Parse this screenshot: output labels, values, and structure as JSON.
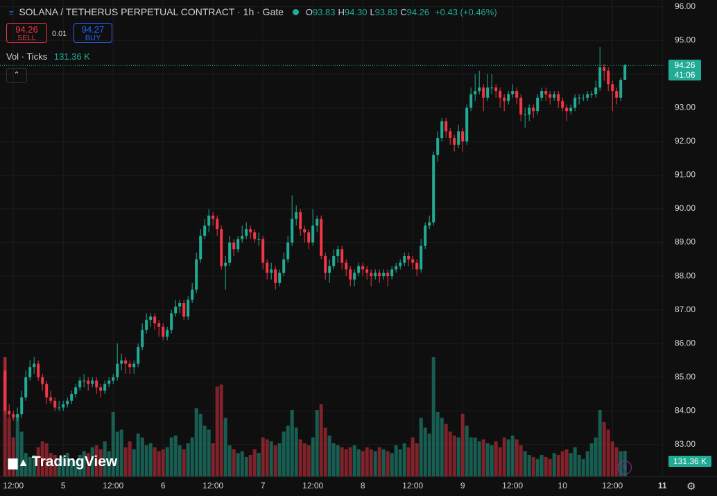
{
  "header": {
    "title": "SOLANA / TETHERUS PERPETUAL CONTRACT · 1h · Gate",
    "ohlc": [
      {
        "label": "O",
        "value": "93.83"
      },
      {
        "label": "H",
        "value": "94.30"
      },
      {
        "label": "L",
        "value": "93.83"
      },
      {
        "label": "C",
        "value": "94.26"
      }
    ],
    "change": "+0.43 (+0.46%)"
  },
  "trade": {
    "sell_price": "94.26",
    "sell_label": "SELL",
    "spread": "0.01",
    "buy_price": "94.27",
    "buy_label": "BUY"
  },
  "volume_legend": {
    "label": "Vol · Ticks",
    "value": "131.36 K"
  },
  "branding": "TradingView",
  "price_tag": {
    "price": "94.26",
    "countdown": "41:06"
  },
  "volume_tag": "131.36 K",
  "chart_data": {
    "type": "candlestick",
    "up_color": "#22ab94",
    "down_color": "#f23645",
    "grid": true,
    "ylim": [
      82.05,
      96.2
    ],
    "yticks": [
      {
        "value": 83,
        "label": "83.00"
      },
      {
        "value": 84,
        "label": "84.00"
      },
      {
        "value": 85,
        "label": "85.00"
      },
      {
        "value": 86,
        "label": "86.00"
      },
      {
        "value": 87,
        "label": "87.00"
      },
      {
        "value": 88,
        "label": "88.00"
      },
      {
        "value": 89,
        "label": "89.00"
      },
      {
        "value": 90,
        "label": "90.00"
      },
      {
        "value": 91,
        "label": "91.00"
      },
      {
        "value": 92,
        "label": "92.00"
      },
      {
        "value": 93,
        "label": "93.00"
      },
      {
        "value": 94,
        "label": "94.00"
      },
      {
        "value": 95,
        "label": "95.00"
      },
      {
        "value": 96,
        "label": "96.00"
      }
    ],
    "xlim": [
      -1.2,
      158.8
    ],
    "xticks": [
      {
        "value": 2,
        "label": "12:00"
      },
      {
        "value": 14,
        "label": "5"
      },
      {
        "value": 26,
        "label": "12:00"
      },
      {
        "value": 38,
        "label": "6"
      },
      {
        "value": 50,
        "label": "12:00"
      },
      {
        "value": 62,
        "label": "7"
      },
      {
        "value": 74,
        "label": "12:00"
      },
      {
        "value": 86,
        "label": "8"
      },
      {
        "value": 98,
        "label": "12:00"
      },
      {
        "value": 110,
        "label": "9"
      },
      {
        "value": 122,
        "label": "12:00"
      },
      {
        "value": 134,
        "label": "10"
      },
      {
        "value": 146,
        "label": "12:00"
      },
      {
        "value": 158,
        "label": "11"
      }
    ],
    "ohlc": [
      [
        85.2,
        85.6,
        83.9,
        84.0
      ],
      [
        84.0,
        84.2,
        83.8,
        83.9
      ],
      [
        83.9,
        84.0,
        83.7,
        83.8
      ],
      [
        83.8,
        84.1,
        83.7,
        83.9
      ],
      [
        83.9,
        84.6,
        83.8,
        84.4
      ],
      [
        84.4,
        85.2,
        84.3,
        85.0
      ],
      [
        85.0,
        85.5,
        84.9,
        85.3
      ],
      [
        85.3,
        85.6,
        85.1,
        85.4
      ],
      [
        85.4,
        85.5,
        84.9,
        85.0
      ],
      [
        85.0,
        85.1,
        84.6,
        84.8
      ],
      [
        84.8,
        84.9,
        84.2,
        84.4
      ],
      [
        84.4,
        84.6,
        84.2,
        84.3
      ],
      [
        84.3,
        84.4,
        84.0,
        84.1
      ],
      [
        84.1,
        84.3,
        84.0,
        84.1
      ],
      [
        84.1,
        84.3,
        84.0,
        84.2
      ],
      [
        84.2,
        84.4,
        84.1,
        84.3
      ],
      [
        84.3,
        84.6,
        84.2,
        84.5
      ],
      [
        84.5,
        84.8,
        84.4,
        84.7
      ],
      [
        84.7,
        85.0,
        84.6,
        84.9
      ],
      [
        84.9,
        85.1,
        84.7,
        84.9
      ],
      [
        84.9,
        85.0,
        84.6,
        84.8
      ],
      [
        84.8,
        85.0,
        84.7,
        84.9
      ],
      [
        84.9,
        85.0,
        84.5,
        84.7
      ],
      [
        84.7,
        84.8,
        84.4,
        84.6
      ],
      [
        84.6,
        84.9,
        84.5,
        84.8
      ],
      [
        84.8,
        85.0,
        84.7,
        84.9
      ],
      [
        84.9,
        85.1,
        84.8,
        85.0
      ],
      [
        85.0,
        86.0,
        84.9,
        85.4
      ],
      [
        85.4,
        85.7,
        85.2,
        85.5
      ],
      [
        85.5,
        85.6,
        85.1,
        85.4
      ],
      [
        85.4,
        85.5,
        85.1,
        85.3
      ],
      [
        85.3,
        85.5,
        85.1,
        85.4
      ],
      [
        85.4,
        86.0,
        85.3,
        85.9
      ],
      [
        85.9,
        86.6,
        85.8,
        86.4
      ],
      [
        86.4,
        86.9,
        86.3,
        86.7
      ],
      [
        86.7,
        86.9,
        86.5,
        86.8
      ],
      [
        86.8,
        86.9,
        86.4,
        86.6
      ],
      [
        86.6,
        86.7,
        86.2,
        86.5
      ],
      [
        86.5,
        86.6,
        86.1,
        86.2
      ],
      [
        86.2,
        86.5,
        86.1,
        86.4
      ],
      [
        86.4,
        87.0,
        86.3,
        86.9
      ],
      [
        86.9,
        87.3,
        86.8,
        87.1
      ],
      [
        87.1,
        87.3,
        86.9,
        87.2
      ],
      [
        87.2,
        87.3,
        86.7,
        86.8
      ],
      [
        86.8,
        87.4,
        86.7,
        87.3
      ],
      [
        87.3,
        87.8,
        87.2,
        87.6
      ],
      [
        87.6,
        88.7,
        87.5,
        88.5
      ],
      [
        88.5,
        89.4,
        88.4,
        89.2
      ],
      [
        89.2,
        89.7,
        89.1,
        89.5
      ],
      [
        89.5,
        90.0,
        89.3,
        89.8
      ],
      [
        89.8,
        89.9,
        89.5,
        89.7
      ],
      [
        89.7,
        89.8,
        89.2,
        89.4
      ],
      [
        89.4,
        89.5,
        88.2,
        88.3
      ],
      [
        88.3,
        88.6,
        87.6,
        88.4
      ],
      [
        88.4,
        89.2,
        88.3,
        89.0
      ],
      [
        89.0,
        89.1,
        88.6,
        88.8
      ],
      [
        88.8,
        89.2,
        88.7,
        89.1
      ],
      [
        89.1,
        89.5,
        89.0,
        89.2
      ],
      [
        89.2,
        89.6,
        89.1,
        89.4
      ],
      [
        89.4,
        89.5,
        89.1,
        89.3
      ],
      [
        89.3,
        89.4,
        89.0,
        89.1
      ],
      [
        89.1,
        89.3,
        88.9,
        89.1
      ],
      [
        89.1,
        89.2,
        88.2,
        88.4
      ],
      [
        88.4,
        88.5,
        87.9,
        88.1
      ],
      [
        88.1,
        88.4,
        87.9,
        88.2
      ],
      [
        88.2,
        88.3,
        87.6,
        87.8
      ],
      [
        87.8,
        88.2,
        87.7,
        88.1
      ],
      [
        88.1,
        88.7,
        88.0,
        88.5
      ],
      [
        88.5,
        89.2,
        88.4,
        89.0
      ],
      [
        89.0,
        90.4,
        88.9,
        89.7
      ],
      [
        89.7,
        90.1,
        89.5,
        89.9
      ],
      [
        89.9,
        90.0,
        89.2,
        89.4
      ],
      [
        89.4,
        89.5,
        89.0,
        89.3
      ],
      [
        89.3,
        89.4,
        88.8,
        89.0
      ],
      [
        89.0,
        90.0,
        88.9,
        89.5
      ],
      [
        89.5,
        89.8,
        89.3,
        89.7
      ],
      [
        89.7,
        89.8,
        88.5,
        88.6
      ],
      [
        88.6,
        88.7,
        87.9,
        88.1
      ],
      [
        88.1,
        88.5,
        87.8,
        88.3
      ],
      [
        88.3,
        88.8,
        88.2,
        88.6
      ],
      [
        88.6,
        88.9,
        88.4,
        88.8
      ],
      [
        88.8,
        88.9,
        88.2,
        88.4
      ],
      [
        88.4,
        88.5,
        88.0,
        88.2
      ],
      [
        88.2,
        88.3,
        87.7,
        87.9
      ],
      [
        87.9,
        88.2,
        87.7,
        88.1
      ],
      [
        88.1,
        88.4,
        88.0,
        88.3
      ],
      [
        88.3,
        88.4,
        88.0,
        88.2
      ],
      [
        88.2,
        88.3,
        87.9,
        88.1
      ],
      [
        88.1,
        88.2,
        87.7,
        88.0
      ],
      [
        88.0,
        88.2,
        87.9,
        88.1
      ],
      [
        88.1,
        88.2,
        87.8,
        88.0
      ],
      [
        88.0,
        88.2,
        87.9,
        88.1
      ],
      [
        88.1,
        88.2,
        87.7,
        88.0
      ],
      [
        88.0,
        88.3,
        87.9,
        88.2
      ],
      [
        88.2,
        88.4,
        88.1,
        88.3
      ],
      [
        88.3,
        88.5,
        88.2,
        88.4
      ],
      [
        88.4,
        88.7,
        88.3,
        88.6
      ],
      [
        88.6,
        88.7,
        88.3,
        88.5
      ],
      [
        88.5,
        88.6,
        88.2,
        88.4
      ],
      [
        88.4,
        88.5,
        88.0,
        88.2
      ],
      [
        88.2,
        89.1,
        88.1,
        88.9
      ],
      [
        88.9,
        89.6,
        88.8,
        89.5
      ],
      [
        89.5,
        89.8,
        89.4,
        89.6
      ],
      [
        89.6,
        91.7,
        89.5,
        91.6
      ],
      [
        91.6,
        92.3,
        91.4,
        92.1
      ],
      [
        92.1,
        92.7,
        92.0,
        92.6
      ],
      [
        92.6,
        92.7,
        92.1,
        92.3
      ],
      [
        92.3,
        92.4,
        91.9,
        92.1
      ],
      [
        92.1,
        92.2,
        91.7,
        91.9
      ],
      [
        91.9,
        92.5,
        91.8,
        92.3
      ],
      [
        92.3,
        92.4,
        91.7,
        92.0
      ],
      [
        92.0,
        93.1,
        91.9,
        93.0
      ],
      [
        93.0,
        93.6,
        92.9,
        93.4
      ],
      [
        93.4,
        94.0,
        93.2,
        93.5
      ],
      [
        93.5,
        94.1,
        93.4,
        93.6
      ],
      [
        93.6,
        93.7,
        92.9,
        93.3
      ],
      [
        93.3,
        94.0,
        93.2,
        93.6
      ],
      [
        93.6,
        94.0,
        93.4,
        93.6
      ],
      [
        93.6,
        93.7,
        93.3,
        93.5
      ],
      [
        93.5,
        93.6,
        93.0,
        93.3
      ],
      [
        93.3,
        93.4,
        92.9,
        93.2
      ],
      [
        93.2,
        93.5,
        93.1,
        93.4
      ],
      [
        93.4,
        93.7,
        93.3,
        93.5
      ],
      [
        93.5,
        93.6,
        93.1,
        93.3
      ],
      [
        93.3,
        93.4,
        92.6,
        92.8
      ],
      [
        92.8,
        93.0,
        92.4,
        92.8
      ],
      [
        92.8,
        93.1,
        92.6,
        93.0
      ],
      [
        93.0,
        93.1,
        92.7,
        92.9
      ],
      [
        92.9,
        93.4,
        92.8,
        93.3
      ],
      [
        93.3,
        93.6,
        93.2,
        93.5
      ],
      [
        93.5,
        93.6,
        93.2,
        93.4
      ],
      [
        93.4,
        93.5,
        93.1,
        93.3
      ],
      [
        93.3,
        93.5,
        93.2,
        93.4
      ],
      [
        93.4,
        93.5,
        93.0,
        93.2
      ],
      [
        93.2,
        93.3,
        92.9,
        93.0
      ],
      [
        93.0,
        93.1,
        92.6,
        92.9
      ],
      [
        92.9,
        93.1,
        92.8,
        93.0
      ],
      [
        93.0,
        93.4,
        92.9,
        93.3
      ],
      [
        93.3,
        93.4,
        93.1,
        93.3
      ],
      [
        93.3,
        93.4,
        93.2,
        93.3
      ],
      [
        93.3,
        93.5,
        93.2,
        93.4
      ],
      [
        93.4,
        93.5,
        93.3,
        93.4
      ],
      [
        93.4,
        93.8,
        93.3,
        93.6
      ],
      [
        93.6,
        94.8,
        93.5,
        94.2
      ],
      [
        94.2,
        94.3,
        93.8,
        94.1
      ],
      [
        94.1,
        94.2,
        93.5,
        93.7
      ],
      [
        93.7,
        93.8,
        92.9,
        93.5
      ],
      [
        93.5,
        93.6,
        93.1,
        93.3
      ],
      [
        93.3,
        93.9,
        93.2,
        93.83
      ],
      [
        93.83,
        94.3,
        93.83,
        94.26
      ]
    ],
    "volume": [
      610,
      300,
      200,
      320,
      230,
      120,
      100,
      110,
      150,
      180,
      170,
      120,
      110,
      90,
      100,
      120,
      90,
      80,
      110,
      130,
      120,
      150,
      160,
      140,
      180,
      130,
      330,
      230,
      240,
      150,
      180,
      140,
      220,
      200,
      160,
      170,
      150,
      130,
      140,
      150,
      200,
      210,
      160,
      140,
      170,
      200,
      350,
      320,
      260,
      240,
      170,
      460,
      470,
      300,
      160,
      140,
      120,
      130,
      100,
      110,
      140,
      120,
      200,
      190,
      180,
      160,
      170,
      230,
      260,
      340,
      250,
      190,
      170,
      160,
      200,
      340,
      370,
      250,
      210,
      170,
      160,
      150,
      140,
      150,
      160,
      140,
      130,
      150,
      140,
      130,
      150,
      140,
      130,
      120,
      160,
      140,
      170,
      150,
      200,
      170,
      300,
      250,
      220,
      610,
      330,
      300,
      270,
      230,
      210,
      200,
      320,
      260,
      200,
      200,
      180,
      190,
      170,
      160,
      180,
      150,
      200,
      190,
      210,
      190,
      160,
      130,
      110,
      100,
      90,
      110,
      100,
      90,
      120,
      110,
      130,
      140,
      120,
      150,
      110,
      90,
      130,
      170,
      200,
      340,
      280,
      240,
      180,
      150,
      130,
      131.36
    ]
  }
}
